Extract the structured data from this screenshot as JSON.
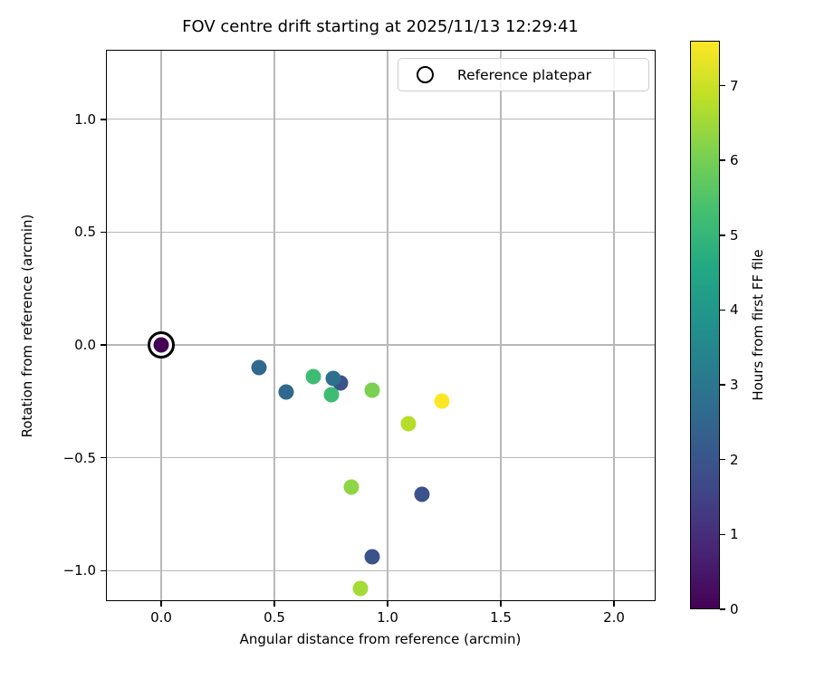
{
  "figure": {
    "background": "#ffffff"
  },
  "chart_data": {
    "type": "scatter",
    "title": "FOV centre drift starting at 2025/11/13 12:29:41",
    "xlabel": "Angular distance from reference (arcmin)",
    "ylabel": "Rotation from reference (arcmin)",
    "xlim": [
      -0.244,
      2.184
    ],
    "ylim": [
      -1.135,
      1.308
    ],
    "grid": true,
    "x_tick_values": [
      0.0,
      0.5,
      1.0,
      1.5,
      2.0
    ],
    "x_tick_labels": [
      "0.0",
      "0.5",
      "1.0",
      "1.5",
      "2.0"
    ],
    "y_tick_values": [
      1.0,
      0.5,
      0.0,
      -0.5,
      -1.0
    ],
    "y_tick_labels": [
      "1.0",
      "0.5",
      "0.0",
      "−0.5",
      "−1.0"
    ],
    "legend": {
      "label": "Reference platepar",
      "location": "upper right",
      "marker": "open-circle"
    },
    "colorbar": {
      "label": "Hours from first FF file",
      "min": 0,
      "max": 7.6,
      "tick_values": [
        0,
        1,
        2,
        3,
        4,
        5,
        6,
        7
      ],
      "tick_labels": [
        "0",
        "1",
        "2",
        "3",
        "4",
        "5",
        "6",
        "7"
      ],
      "colormap": "viridis",
      "viridis_stops": [
        "#440154",
        "#482475",
        "#414487",
        "#355f8d",
        "#2a788e",
        "#21918c",
        "#22a884",
        "#44bf70",
        "#7ad151",
        "#bddf26",
        "#fde725"
      ]
    },
    "points": [
      {
        "x": 0.0,
        "y": 0.0,
        "hours": 0.0,
        "color": "#440154",
        "is_reference": true
      },
      {
        "x": 0.79,
        "y": -0.17,
        "hours": 1.9,
        "color": "#3b528b",
        "is_reference": false
      },
      {
        "x": 1.15,
        "y": -0.66,
        "hours": 1.9,
        "color": "#3b528b",
        "is_reference": false
      },
      {
        "x": 0.93,
        "y": -0.94,
        "hours": 2.0,
        "color": "#3b528b",
        "is_reference": false
      },
      {
        "x": 0.43,
        "y": -0.1,
        "hours": 2.9,
        "color": "#31688e",
        "is_reference": false
      },
      {
        "x": 0.55,
        "y": -0.21,
        "hours": 2.9,
        "color": "#31688e",
        "is_reference": false
      },
      {
        "x": 0.76,
        "y": -0.15,
        "hours": 3.0,
        "color": "#2d708e",
        "is_reference": false
      },
      {
        "x": 0.67,
        "y": -0.14,
        "hours": 5.6,
        "color": "#3fbc73",
        "is_reference": false
      },
      {
        "x": 0.75,
        "y": -0.22,
        "hours": 5.6,
        "color": "#3fbc73",
        "is_reference": false
      },
      {
        "x": 0.93,
        "y": -0.2,
        "hours": 6.3,
        "color": "#7ad151",
        "is_reference": false
      },
      {
        "x": 0.84,
        "y": -0.63,
        "hours": 6.6,
        "color": "#8ed645",
        "is_reference": false
      },
      {
        "x": 0.88,
        "y": -1.08,
        "hours": 6.9,
        "color": "#a5db36",
        "is_reference": false
      },
      {
        "x": 1.09,
        "y": -0.35,
        "hours": 7.1,
        "color": "#b5de2b",
        "is_reference": false
      },
      {
        "x": 1.24,
        "y": -0.25,
        "hours": 7.6,
        "color": "#fde725",
        "is_reference": false
      }
    ]
  }
}
